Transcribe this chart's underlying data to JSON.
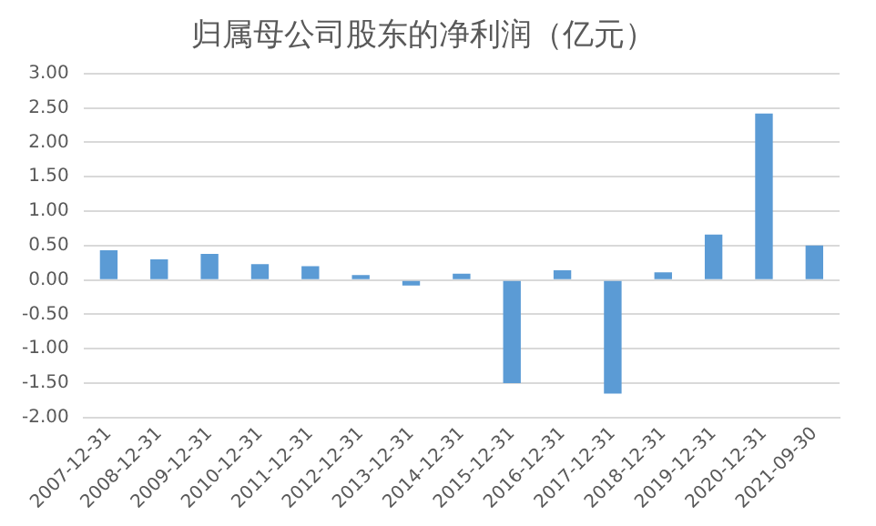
{
  "chart_data": {
    "type": "bar",
    "title": "归属母公司股东的净利润（亿元）",
    "categories": [
      "2007-12-31",
      "2008-12-31",
      "2009-12-31",
      "2010-12-31",
      "2011-12-31",
      "2012-12-31",
      "2013-12-31",
      "2014-12-31",
      "2015-12-31",
      "2016-12-31",
      "2017-12-31",
      "2018-12-31",
      "2019-12-31",
      "2020-12-31",
      "2021-09-30"
    ],
    "values": [
      0.43,
      0.3,
      0.38,
      0.23,
      0.2,
      0.07,
      -0.08,
      0.09,
      -1.5,
      0.14,
      -1.65,
      0.11,
      0.66,
      2.42,
      0.5
    ],
    "color": "#5b9bd5",
    "ylim": [
      -2,
      3
    ],
    "yticks": [
      {
        "value": -2,
        "label": "-2.00"
      },
      {
        "value": -1.5,
        "label": "-1.50"
      },
      {
        "value": -1,
        "label": "-1.00"
      },
      {
        "value": -0.5,
        "label": "-0.50"
      },
      {
        "value": 0,
        "label": "0.00"
      },
      {
        "value": 0.5,
        "label": "0.50"
      },
      {
        "value": 1,
        "label": "1.00"
      },
      {
        "value": 1.5,
        "label": "1.50"
      },
      {
        "value": 2,
        "label": "2.00"
      },
      {
        "value": 2.5,
        "label": "2.50"
      },
      {
        "value": 3,
        "label": "3.00"
      }
    ],
    "grid": "y",
    "legend": false
  }
}
